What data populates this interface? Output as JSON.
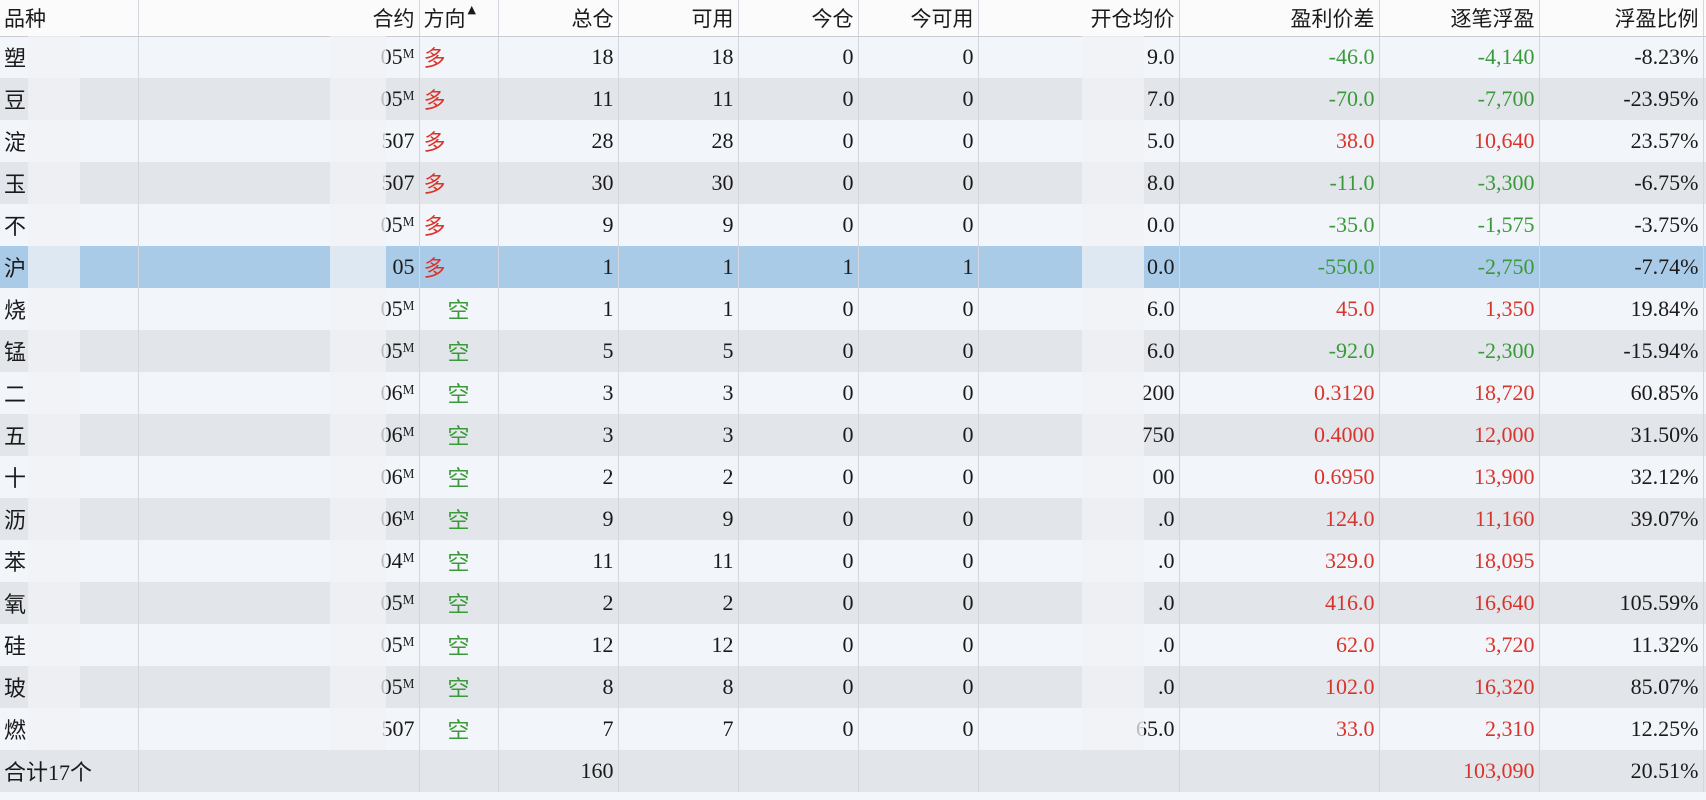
{
  "header": {
    "columns": [
      "品种",
      "合约",
      "方向",
      "总仓",
      "可用",
      "今仓",
      "今可用",
      "开仓均价",
      "盈利价差",
      "逐笔浮盈",
      "浮盈比例"
    ],
    "sort_indicator": "▲",
    "sort_column": 2
  },
  "side_colors": {
    "long": "#d9342b",
    "short": "#3a9a3a"
  },
  "selected_row": 5,
  "table": {
    "rows": [
      {
        "side": "long",
        "cells": [
          "塑",
          "05ᴹ",
          "多",
          "18",
          "18",
          "0",
          "0",
          "9.0",
          "-46.0",
          "-4,140",
          "-8.23%"
        ]
      },
      {
        "side": "long",
        "cells": [
          "豆",
          "05ᴹ",
          "多",
          "11",
          "11",
          "0",
          "0",
          "7.0",
          "-70.0",
          "-7,700",
          "-23.95%"
        ]
      },
      {
        "side": "long",
        "cells": [
          "淀",
          "507",
          "多",
          "28",
          "28",
          "0",
          "0",
          "5.0",
          "38.0",
          "10,640",
          "23.57%"
        ]
      },
      {
        "side": "long",
        "cells": [
          "玉",
          "507",
          "多",
          "30",
          "30",
          "0",
          "0",
          "8.0",
          "-11.0",
          "-3,300",
          "-6.75%"
        ]
      },
      {
        "side": "long",
        "cells": [
          "不",
          "05ᴹ",
          "多",
          "9",
          "9",
          "0",
          "0",
          "0.0",
          "-35.0",
          "-1,575",
          "-3.75%"
        ]
      },
      {
        "side": "long",
        "cells": [
          "沪",
          "05",
          "多",
          "1",
          "1",
          "1",
          "1",
          "0.0",
          "-550.0",
          "-2,750",
          "-7.74%"
        ]
      },
      {
        "side": "short",
        "cells": [
          "烧",
          "05ᴹ",
          "空",
          "1",
          "1",
          "0",
          "0",
          "6.0",
          "45.0",
          "1,350",
          "19.84%"
        ]
      },
      {
        "side": "short",
        "cells": [
          "锰",
          "05ᴹ",
          "空",
          "5",
          "5",
          "0",
          "0",
          "6.0",
          "-92.0",
          "-2,300",
          "-15.94%"
        ]
      },
      {
        "side": "short",
        "cells": [
          "二",
          "06ᴹ",
          "空",
          "3",
          "3",
          "0",
          "0",
          "200",
          "0.3120",
          "18,720",
          "60.85%"
        ]
      },
      {
        "side": "short",
        "cells": [
          "五",
          "06ᴹ",
          "空",
          "3",
          "3",
          "0",
          "0",
          "750",
          "0.4000",
          "12,000",
          "31.50%"
        ]
      },
      {
        "side": "short",
        "cells": [
          "十",
          "06ᴹ",
          "空",
          "2",
          "2",
          "0",
          "0",
          "00",
          "0.6950",
          "13,900",
          "32.12%"
        ]
      },
      {
        "side": "short",
        "cells": [
          "沥",
          "06ᴹ",
          "空",
          "9",
          "9",
          "0",
          "0",
          ".0",
          "124.0",
          "11,160",
          "39.07%"
        ]
      },
      {
        "side": "short",
        "cells": [
          "苯",
          "04ᴹ",
          "空",
          "11",
          "11",
          "0",
          "0",
          ".0",
          "329.0",
          "18,095",
          null
        ]
      },
      {
        "side": "short",
        "cells": [
          "氧",
          "05ᴹ",
          "空",
          "2",
          "2",
          "0",
          "0",
          ".0",
          "416.0",
          "16,640",
          "105.59%"
        ]
      },
      {
        "side": "short",
        "cells": [
          "硅",
          "05ᴹ",
          "空",
          "12",
          "12",
          "0",
          "0",
          ".0",
          "62.0",
          "3,720",
          "11.32%"
        ]
      },
      {
        "side": "short",
        "cells": [
          "玻",
          "05ᴹ",
          "空",
          "8",
          "8",
          "0",
          "0",
          ".0",
          "102.0",
          "16,320",
          "85.07%"
        ]
      },
      {
        "side": "short",
        "cells": [
          "燃",
          "507",
          "空",
          "7",
          "7",
          "0",
          "0",
          "65.0",
          "33.0",
          "2,310",
          "12.25%"
        ]
      }
    ]
  },
  "footer": {
    "cells": [
      "合计17个",
      null,
      null,
      "160",
      null,
      null,
      null,
      null,
      null,
      "103,090",
      "20.51%"
    ]
  }
}
